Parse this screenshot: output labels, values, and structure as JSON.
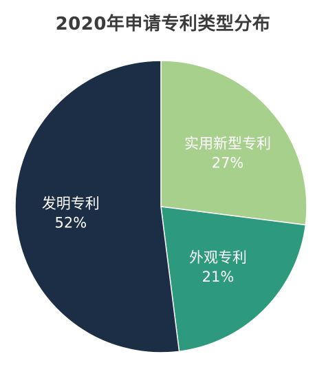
{
  "chart_data": {
    "type": "pie",
    "title": "2020年申请专利类型分布",
    "slices": [
      {
        "label": "实用新型专利",
        "value": 27,
        "display": "27%",
        "color": "#a8d08d",
        "text_color": "#ffffff"
      },
      {
        "label": "外观专利",
        "value": 21,
        "display": "21%",
        "color": "#2e9a7d",
        "text_color": "#ffffff"
      },
      {
        "label": "发明专利",
        "value": 52,
        "display": "52%",
        "color": "#1b2e45",
        "text_color": "#ffffff"
      }
    ],
    "start": "12 o'clock",
    "direction": "clockwise",
    "legend": "none",
    "label_position": "inside"
  }
}
